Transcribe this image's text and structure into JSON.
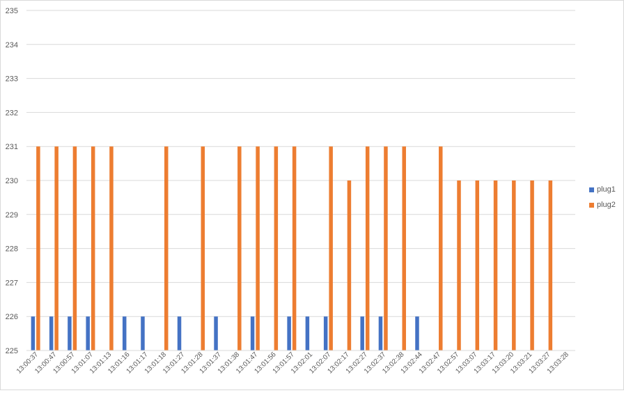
{
  "chart_data": {
    "type": "bar",
    "title": "",
    "xlabel": "",
    "ylabel": "",
    "ylim": [
      225,
      235
    ],
    "y_ticks": [
      "225",
      "226",
      "227",
      "228",
      "229",
      "230",
      "231",
      "232",
      "233",
      "234",
      "235"
    ],
    "grid": true,
    "legend_position": "right",
    "categories": [
      "13:00:37",
      "13:00:47",
      "13:00:57",
      "13:01:07",
      "13:01:13",
      "13:01:16",
      "13:01:17",
      "13:01:18",
      "13:01:27",
      "13:01:28",
      "13:01:37",
      "13:01:38",
      "13:01:47",
      "13:01:56",
      "13:01:57",
      "13:02:01",
      "13:02:07",
      "13:02:17",
      "13:02:27",
      "13:02:37",
      "13:02:38",
      "13:02:44",
      "13:02:47",
      "13:02:57",
      "13:03:07",
      "13:03:17",
      "13:03:20",
      "13:03:21",
      "13:03:27",
      "13:03:28"
    ],
    "series": [
      {
        "name": "plug1",
        "color": "#4472c4",
        "values": [
          226,
          226,
          226,
          226,
          null,
          226,
          226,
          null,
          226,
          null,
          226,
          null,
          226,
          null,
          226,
          226,
          226,
          null,
          226,
          226,
          null,
          226,
          null,
          null,
          null,
          null,
          null,
          null,
          null,
          null
        ]
      },
      {
        "name": "plug2",
        "color": "#ed7d31",
        "values": [
          231,
          231,
          231,
          231,
          231,
          null,
          null,
          231,
          null,
          231,
          null,
          231,
          231,
          231,
          231,
          null,
          231,
          230,
          231,
          231,
          231,
          null,
          231,
          230,
          230,
          230,
          230,
          230,
          230,
          null
        ]
      }
    ]
  }
}
